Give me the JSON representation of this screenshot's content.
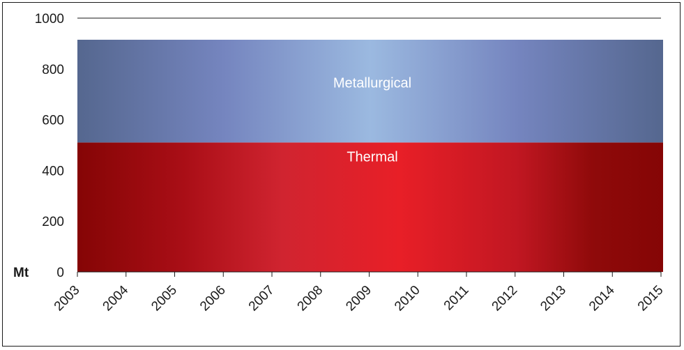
{
  "chart_data": {
    "type": "area",
    "stacked": true,
    "x": [
      "2003",
      "2004",
      "2005",
      "2006",
      "2007",
      "2008",
      "2009",
      "2010",
      "2011",
      "2012",
      "2013",
      "2014",
      "2015"
    ],
    "series": [
      {
        "name": "Thermal",
        "values": [
          510,
          510,
          510,
          510,
          510,
          510,
          510,
          510,
          510,
          510,
          510,
          510,
          510
        ],
        "color": "#d41f26"
      },
      {
        "name": "Metallurgical",
        "values": [
          405,
          405,
          405,
          405,
          405,
          405,
          405,
          405,
          405,
          405,
          405,
          405,
          405
        ],
        "color": "#8ba6d8"
      }
    ],
    "ylim": [
      0,
      1000
    ],
    "yticks": [
      "0",
      "200",
      "400",
      "600",
      "800",
      "1000"
    ],
    "ytick_values": [
      0,
      200,
      400,
      600,
      800,
      1000
    ],
    "unit_label": "Mt",
    "grid": "top line only",
    "legend": "none (series labels inside areas)"
  }
}
